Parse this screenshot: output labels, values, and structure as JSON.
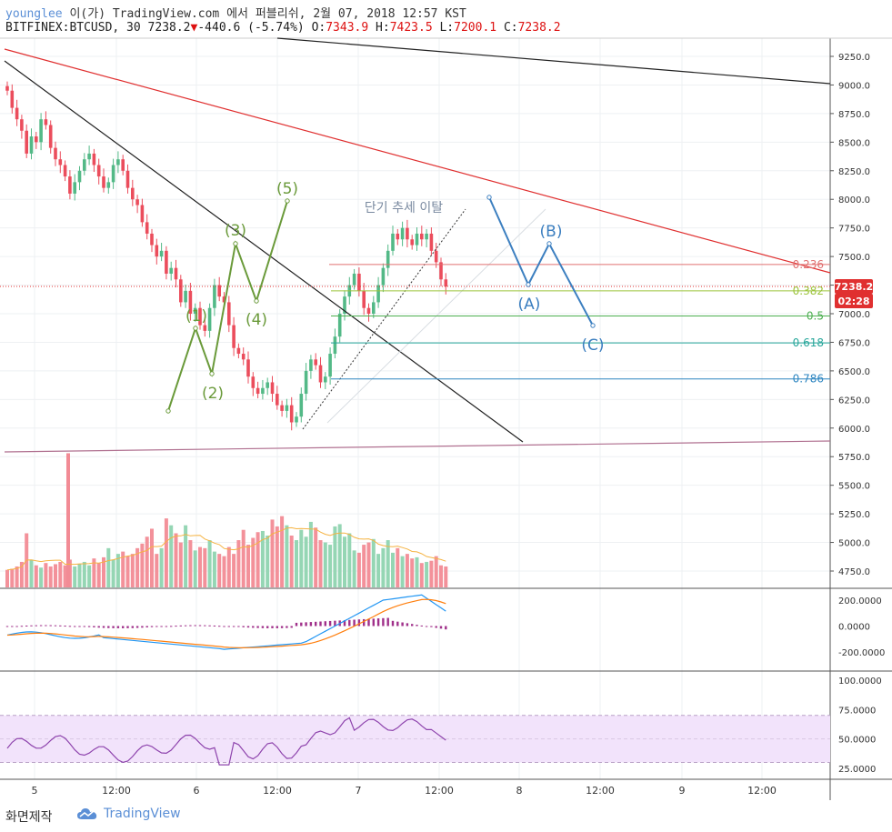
{
  "header": {
    "user": "younglee",
    "published": "이(가) TradingView.com 에서 퍼블리쉬, 2월 07, 2018 12:57 KST",
    "symbol": "BITFINEX:BTCUSD, 30",
    "last": "7238.2",
    "down_arrow": "▼",
    "change": "-440.6 (-5.74%)",
    "o_label": "O:",
    "o_val": "7343.9",
    "h_label": "H:",
    "h_val": "7423.5",
    "l_label": "L:",
    "l_val": "7200.1",
    "c_label": "C:",
    "c_val": "7238.2"
  },
  "annotations": {
    "breakout_text": "단기 추세 이탈",
    "impulse": [
      "(1)",
      "(2)",
      "(3)",
      "(4)",
      "(5)"
    ],
    "correction": [
      "(A)",
      "(B)",
      "(C)"
    ]
  },
  "price_badge": "7238.2",
  "timer_badge": "02:28",
  "colors": {
    "up": "#53b987",
    "down": "#eb4d5c",
    "impulse": "#6a9a3a",
    "correction": "#3c7fc0",
    "red_line": "#e03030",
    "black_line": "#222222",
    "purple_line": "#b07090",
    "macd_line": "#2196f3",
    "signal_line": "#ff7f0e",
    "hist": "#a0308a",
    "rsi": "#8e44ad",
    "rsi_band": "#f2e3fb"
  },
  "footer": {
    "label": "화면제작",
    "brand": "TradingView",
    "brand_icon": "tradingview-cloud-icon"
  },
  "chart_data": [
    {
      "type": "candlestick",
      "title": "BITFINEX:BTCUSD, 30",
      "ylim": [
        4600,
        9400
      ],
      "y_ticks": [
        "9250.0",
        "9000.0",
        "8750.0",
        "8500.0",
        "8250.0",
        "8000.0",
        "7750.0",
        "7500.0",
        "7250.0",
        "7000.0",
        "6750.0",
        "6500.0",
        "6250.0",
        "6000.0",
        "5750.0",
        "5500.0",
        "5250.0",
        "5000.0",
        "4750.0"
      ],
      "x_ticks": [
        "5",
        "12:00",
        "6",
        "12:00",
        "7",
        "12:00",
        "8",
        "12:00",
        "9",
        "12:00"
      ],
      "fibonacci": [
        {
          "label": "0.236",
          "value": 7430,
          "color": "#e07070"
        },
        {
          "label": "0.382",
          "value": 7200,
          "color": "#9cc43c"
        },
        {
          "label": "0.5",
          "value": 6980,
          "color": "#4caf50"
        },
        {
          "label": "0.618",
          "value": 6745,
          "color": "#26a69a"
        },
        {
          "label": "0.786",
          "value": 6430,
          "color": "#2e86c1"
        }
      ],
      "current_price": 7238.2,
      "close_series": [
        8950,
        8800,
        8700,
        8600,
        8400,
        8550,
        8500,
        8700,
        8650,
        8450,
        8350,
        8300,
        8200,
        8050,
        8150,
        8250,
        8350,
        8400,
        8300,
        8200,
        8100,
        8150,
        8300,
        8350,
        8250,
        8100,
        8000,
        7950,
        7800,
        7700,
        7600,
        7500,
        7550,
        7350,
        7400,
        7300,
        7100,
        7200,
        7000,
        7050,
        6900,
        6850,
        7050,
        7250,
        7150,
        7100,
        6900,
        6700,
        6650,
        6600,
        6450,
        6350,
        6300,
        6350,
        6400,
        6300,
        6200,
        6150,
        6200,
        6050,
        6100,
        6300,
        6500,
        6600,
        6550,
        6400,
        6450,
        6650,
        6800,
        7000,
        7150,
        7250,
        7350,
        7200,
        7050,
        7000,
        7100,
        7250,
        7400,
        7550,
        7700,
        7650,
        7750,
        7650,
        7600,
        7700,
        7650,
        7700,
        7550,
        7450,
        7300,
        7238
      ],
      "volume_series": [
        4760,
        4770,
        4790,
        4830,
        5080,
        4850,
        4800,
        4780,
        4820,
        4790,
        4810,
        4830,
        4800,
        4850,
        4790,
        4810,
        4830,
        4800,
        4860,
        4820,
        4870,
        4950,
        4850,
        4900,
        4920,
        4880,
        4900,
        4950,
        4990,
        5050,
        5120,
        4900,
        4950,
        5210,
        5150,
        5080,
        5000,
        5150,
        5020,
        4930,
        4960,
        4950,
        5020,
        4920,
        4900,
        4880,
        4960,
        4900,
        5020,
        5110,
        4980,
        5040,
        5090,
        5100,
        5060,
        5200,
        5140,
        5230,
        5150,
        5060,
        5020,
        5110,
        5050,
        5180,
        5130,
        5020,
        5000,
        4980,
        5140,
        5160,
        5050,
        5080,
        4930,
        4910,
        4980,
        5000,
        5030,
        4900,
        4950,
        5020,
        4910,
        4950,
        4880,
        4900,
        4860,
        4870,
        4820,
        4830,
        4840,
        4880,
        4800,
        4790
      ],
      "macd": {
        "range": [
          -300,
          300
        ],
        "ticks": [
          "200.0000",
          "0.0000",
          "-200.0000"
        ]
      },
      "rsi": {
        "range": [
          15,
          105
        ],
        "ticks": [
          "100.0000",
          "75.0000",
          "50.0000",
          "25.0000"
        ],
        "band": [
          30,
          70
        ]
      }
    }
  ]
}
